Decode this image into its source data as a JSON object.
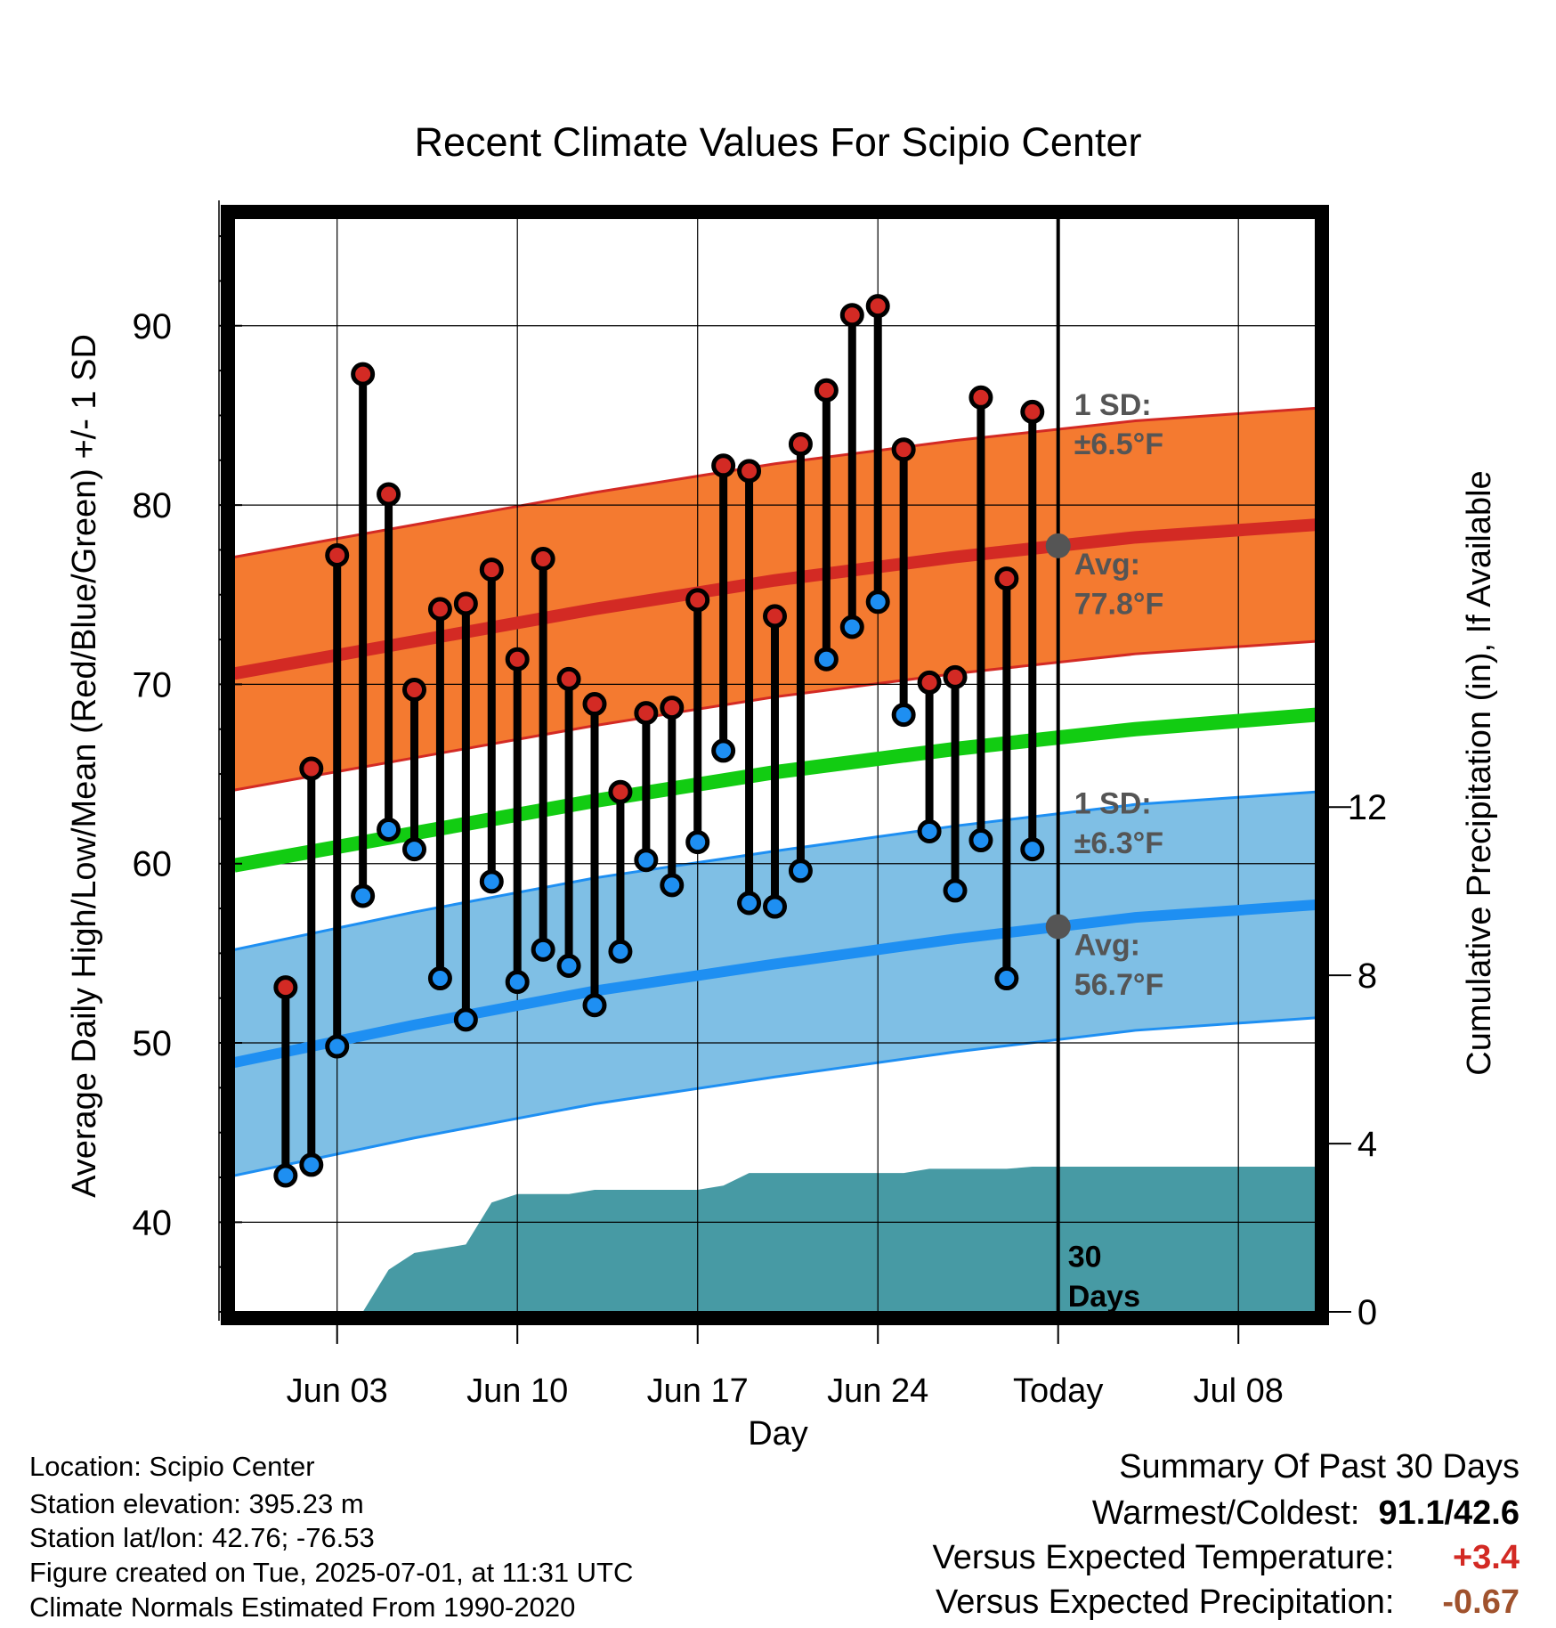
{
  "chart_data": {
    "type": "line",
    "title": "Recent Climate Values For Scipio Center",
    "xlabel": "Day",
    "ylabel": "Average Daily High/Low/Mean (Red/Blue/Green) +/- 1 SD",
    "y2label": "Cumulative Precipitation (in), If Available",
    "ylim": [
      35,
      96
    ],
    "y2lim": [
      0,
      26
    ],
    "xlim": [
      "2025-05-30",
      "2025-07-11"
    ],
    "x_ticks": [
      "Jun 03",
      "Jun 10",
      "Jun 17",
      "Jun 24",
      "Today",
      "Jul 08"
    ],
    "x_tick_dates": [
      "2025-06-03",
      "2025-06-10",
      "2025-06-17",
      "2025-06-24",
      "2025-07-01",
      "2025-07-08"
    ],
    "y_ticks": [
      40,
      50,
      60,
      70,
      80,
      90
    ],
    "y2_ticks": [
      0,
      4,
      8,
      12
    ],
    "grid": true,
    "today_date": "2025-07-01",
    "today_label_line1": "30",
    "today_label_line2": "Days",
    "high_band_label_line1": "1 SD:",
    "high_band_label_line2": "±6.5°F",
    "high_avg_label_line1": "Avg:",
    "high_avg_label_line2": "77.8°F",
    "low_band_label_line1": "1 SD:",
    "low_band_label_line2": "±6.3°F",
    "low_avg_label_line1": "Avg:",
    "low_avg_label_line2": "56.7°F",
    "normals_x": [
      "2025-05-30",
      "2025-06-06",
      "2025-06-13",
      "2025-06-20",
      "2025-06-27",
      "2025-07-04",
      "2025-07-11"
    ],
    "normal_high": [
      70.6,
      72.4,
      74.2,
      75.8,
      77.1,
      78.2,
      78.9
    ],
    "normal_mean": [
      59.9,
      61.7,
      63.5,
      65.1,
      66.4,
      67.5,
      68.3
    ],
    "normal_low": [
      48.9,
      51.0,
      52.9,
      54.4,
      55.8,
      57.0,
      57.7
    ],
    "high_sd": 6.5,
    "low_sd": 6.3,
    "observations": {
      "dates": [
        "2025-06-01",
        "2025-06-02",
        "2025-06-03",
        "2025-06-04",
        "2025-06-05",
        "2025-06-06",
        "2025-06-07",
        "2025-06-08",
        "2025-06-09",
        "2025-06-10",
        "2025-06-11",
        "2025-06-12",
        "2025-06-13",
        "2025-06-14",
        "2025-06-15",
        "2025-06-16",
        "2025-06-17",
        "2025-06-18",
        "2025-06-19",
        "2025-06-20",
        "2025-06-21",
        "2025-06-22",
        "2025-06-23",
        "2025-06-24",
        "2025-06-25",
        "2025-06-26",
        "2025-06-27",
        "2025-06-28",
        "2025-06-29",
        "2025-06-30"
      ],
      "highs": [
        53.1,
        65.3,
        77.2,
        87.3,
        80.6,
        69.7,
        74.2,
        74.5,
        76.4,
        71.4,
        77.0,
        70.3,
        68.9,
        64.0,
        68.4,
        68.7,
        74.7,
        82.2,
        81.9,
        73.8,
        83.4,
        86.4,
        90.6,
        91.1,
        83.1,
        70.1,
        70.4,
        86.0,
        75.9,
        85.2
      ],
      "lows": [
        42.6,
        43.2,
        49.8,
        58.2,
        61.9,
        60.8,
        53.6,
        51.3,
        59.0,
        53.4,
        55.2,
        54.3,
        52.1,
        55.1,
        60.2,
        58.8,
        61.2,
        66.3,
        57.8,
        57.6,
        59.6,
        71.4,
        73.2,
        74.6,
        68.3,
        61.8,
        58.5,
        61.3,
        53.6,
        60.8
      ],
      "low_in_band": [
        false,
        false,
        false,
        false,
        false,
        false,
        false,
        false,
        false,
        false,
        false,
        false,
        false,
        false,
        false,
        false,
        false,
        true,
        false,
        false,
        false,
        true,
        true,
        true,
        true,
        false,
        false,
        false,
        false,
        false
      ]
    },
    "precipitation": {
      "x": [
        "2025-06-03",
        "2025-06-04",
        "2025-06-05",
        "2025-06-06",
        "2025-06-07",
        "2025-06-08",
        "2025-06-09",
        "2025-06-10",
        "2025-06-11",
        "2025-06-12",
        "2025-06-13",
        "2025-06-14",
        "2025-06-15",
        "2025-06-16",
        "2025-06-17",
        "2025-06-18",
        "2025-06-19",
        "2025-06-20",
        "2025-06-21",
        "2025-06-22",
        "2025-06-23",
        "2025-06-24",
        "2025-06-25",
        "2025-06-26",
        "2025-06-27",
        "2025-06-28",
        "2025-06-29",
        "2025-06-30",
        "2025-07-01",
        "2025-07-11"
      ],
      "values": [
        0.0,
        0.0,
        1.0,
        1.4,
        1.5,
        1.6,
        2.6,
        2.8,
        2.8,
        2.8,
        2.9,
        2.9,
        2.9,
        2.9,
        2.9,
        3.0,
        3.3,
        3.3,
        3.3,
        3.3,
        3.3,
        3.3,
        3.3,
        3.4,
        3.4,
        3.4,
        3.4,
        3.45,
        3.45,
        3.45
      ]
    },
    "colors": {
      "high_band": "#f47a30",
      "high_line": "#d32a24",
      "mean_line": "#12cc12",
      "low_band": "#7fbfe5",
      "low_line": "#1e8ff2",
      "precip": "#479aa4",
      "high_dot": "#d32a24",
      "low_dot": "#1e8ff2",
      "label_gray": "#555555"
    }
  },
  "footer": {
    "location": "Location: Scipio Center",
    "elevation": "Station elevation: 395.23 m",
    "latlon": "Station lat/lon: 42.76; -76.53",
    "created": "Figure created on Tue, 2025-07-01, at 11:31 UTC",
    "normals": "Climate Normals Estimated From 1990-2020"
  },
  "summary": {
    "title": "Summary Of Past 30 Days",
    "warm_cold_label": "Warmest/Coldest:",
    "warm_cold_value": "91.1/42.6",
    "temp_label": "Versus Expected Temperature:",
    "temp_value": "+3.4",
    "temp_color": "#d32a24",
    "precip_label": "Versus Expected Precipitation:",
    "precip_value": "-0.67",
    "precip_color": "#a0522d"
  }
}
